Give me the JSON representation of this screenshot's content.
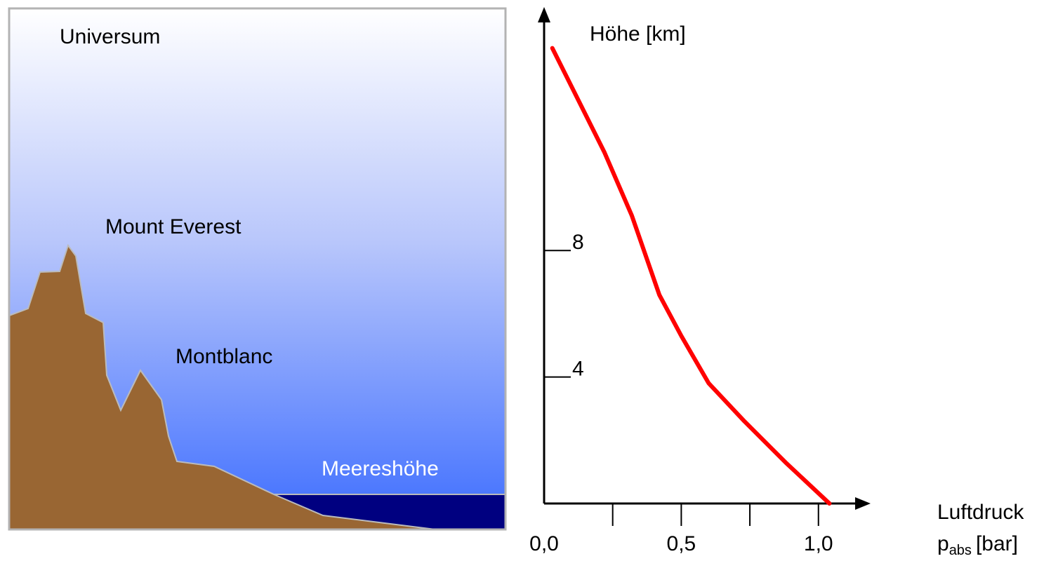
{
  "illustration": {
    "labels": [
      "Universum",
      "Mount Everest",
      "Montblanc",
      "Meereshöhe"
    ]
  },
  "chart_data": {
    "type": "line",
    "ylabel": "Höhe [km]",
    "xlabel": {
      "line1": "Luftdruck",
      "symbol": "p",
      "subscript": "abs",
      "unit": "[bar]"
    },
    "x": [
      0.03,
      0.22,
      0.32,
      0.42,
      0.5,
      0.6,
      0.73,
      0.88,
      1.04
    ],
    "values": [
      14.4,
      11.1,
      9.1,
      6.6,
      5.3,
      3.8,
      2.6,
      1.3,
      0
    ],
    "color": "#ff0000",
    "xlim": [
      0,
      1.19
    ],
    "ylim": [
      0,
      15.7
    ],
    "xticks": [
      {
        "value": 0,
        "label": "0,0"
      },
      {
        "value": 0.5,
        "label": "0,5"
      },
      {
        "value": 1,
        "label": "1,0"
      }
    ],
    "minor_xticks": [
      0.25,
      0.75
    ],
    "yticks": [
      4,
      8
    ]
  }
}
